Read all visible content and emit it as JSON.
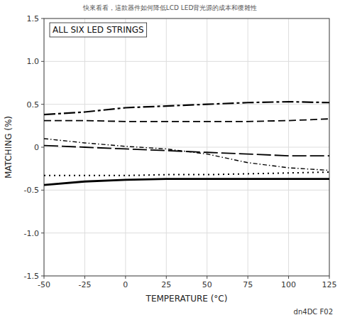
{
  "chart_data": {
    "type": "line",
    "title": "ALL SIX LED STRINGS",
    "subtitle": "快來看看，這款器件如何降低LCD LED背光源的成本和復雜性",
    "annotation": "dn4DC F02",
    "xlabel": "TEMPERATURE (°C)",
    "ylabel": "MATCHING (%)",
    "x": [
      -50,
      -25,
      0,
      25,
      50,
      75,
      100,
      125
    ],
    "xlim": [
      -50,
      125
    ],
    "ylim": [
      -1.5,
      1.5
    ],
    "xticks": [
      -50,
      -25,
      0,
      25,
      50,
      75,
      100,
      125
    ],
    "yticks": [
      -1.5,
      {
        "value": -1.0,
        "label": "-1.0"
      },
      -0.5,
      0,
      0.5,
      {
        "value": 1.0,
        "label": "1.0"
      },
      1.5
    ],
    "grid": true,
    "series": [
      {
        "color": "black",
        "line_style": "longdashdot",
        "values": [
          0.38,
          0.41,
          0.46,
          0.48,
          0.5,
          0.52,
          0.53,
          0.52
        ]
      },
      {
        "color": "black",
        "line_style": "dashed",
        "values": [
          0.31,
          0.31,
          0.3,
          0.3,
          0.3,
          0.3,
          0.31,
          0.33
        ]
      },
      {
        "color": "black",
        "line_style": "dashdot",
        "values": [
          0.1,
          0.05,
          0.01,
          -0.02,
          -0.08,
          -0.18,
          -0.24,
          -0.27
        ]
      },
      {
        "color": "black",
        "line_style": "longdash",
        "values": [
          0.02,
          0.0,
          -0.02,
          -0.04,
          -0.06,
          -0.08,
          -0.1,
          -0.1
        ]
      },
      {
        "color": "black",
        "line_style": "dotted",
        "values": [
          -0.33,
          -0.33,
          -0.33,
          -0.32,
          -0.32,
          -0.31,
          -0.3,
          -0.29
        ]
      },
      {
        "color": "black",
        "line_style": "solid",
        "values": [
          -0.44,
          -0.4,
          -0.38,
          -0.37,
          -0.37,
          -0.37,
          -0.37,
          -0.37
        ]
      }
    ]
  }
}
